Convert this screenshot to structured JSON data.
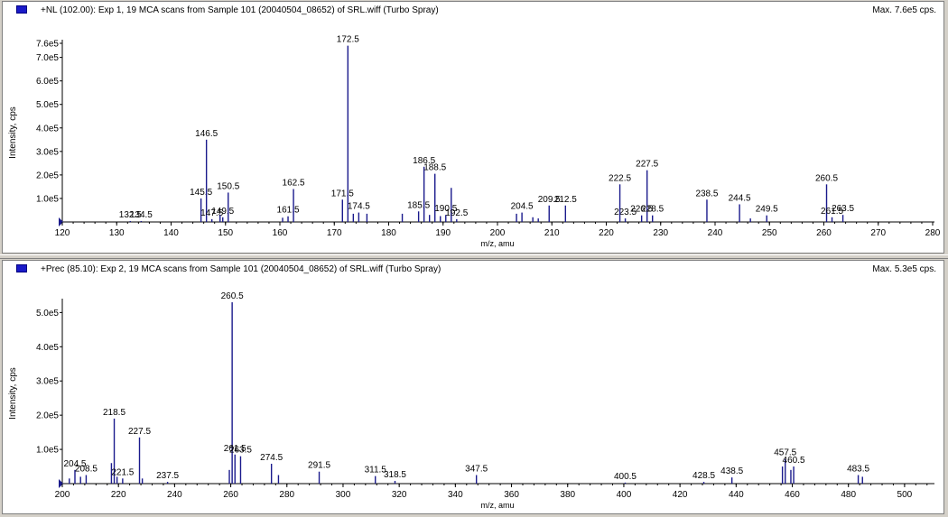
{
  "colors": {
    "peak": "#1a1a8c",
    "axis": "#000000",
    "marker": "#1a1ac8"
  },
  "panes": [
    {
      "title": "+NL (102.00): Exp 1, 19 MCA scans from Sample 101 (20040504_08652) of SRL.wiff (Turbo Spray)",
      "max_label": "Max. 7.6e5 cps."
    },
    {
      "title": "+Prec (85.10): Exp 2, 19 MCA scans from Sample 101 (20040504_08652) of SRL.wiff (Turbo Spray)",
      "max_label": "Max. 5.3e5 cps."
    }
  ],
  "chart_data": [
    {
      "type": "bar",
      "xlabel": "m/z, amu",
      "ylabel": "Intensity, cps",
      "xlim": [
        120,
        280
      ],
      "ylim": [
        0,
        760000
      ],
      "xticks": [
        120,
        130,
        140,
        150,
        160,
        170,
        180,
        190,
        200,
        210,
        220,
        230,
        240,
        250,
        260,
        270,
        280
      ],
      "yticks": [
        {
          "value": 100000,
          "label": "1.0e5"
        },
        {
          "value": 200000,
          "label": "2.0e5"
        },
        {
          "value": 300000,
          "label": "3.0e5"
        },
        {
          "value": 400000,
          "label": "4.0e5"
        },
        {
          "value": 500000,
          "label": "5.0e5"
        },
        {
          "value": 600000,
          "label": "6.0e5"
        },
        {
          "value": 700000,
          "label": "7.0e5"
        },
        {
          "value": 760000,
          "label": "7.6e5"
        }
      ],
      "peaks": [
        {
          "x": 132.5,
          "y": 4000,
          "label": "132.5"
        },
        {
          "x": 134.5,
          "y": 4000,
          "label": "134.5"
        },
        {
          "x": 145.5,
          "y": 100000,
          "label": "145.5"
        },
        {
          "x": 146.5,
          "y": 350000,
          "label": "146.5"
        },
        {
          "x": 147.5,
          "y": 12000,
          "label": "147.5"
        },
        {
          "x": 149.0,
          "y": 30000
        },
        {
          "x": 149.5,
          "y": 20000,
          "label": "149.5"
        },
        {
          "x": 150.5,
          "y": 125000,
          "label": "150.5"
        },
        {
          "x": 160.5,
          "y": 18000
        },
        {
          "x": 161.5,
          "y": 24000,
          "label": "161.5"
        },
        {
          "x": 162.5,
          "y": 140000,
          "label": "162.5"
        },
        {
          "x": 171.5,
          "y": 95000,
          "label": "171.5"
        },
        {
          "x": 172.5,
          "y": 750000,
          "label": "172.5"
        },
        {
          "x": 173.5,
          "y": 35000
        },
        {
          "x": 174.5,
          "y": 40000,
          "label": "174.5"
        },
        {
          "x": 176.0,
          "y": 35000
        },
        {
          "x": 182.5,
          "y": 35000
        },
        {
          "x": 185.5,
          "y": 45000,
          "label": "185.5"
        },
        {
          "x": 186.5,
          "y": 235000,
          "label": "186.5"
        },
        {
          "x": 187.5,
          "y": 30000
        },
        {
          "x": 188.5,
          "y": 205000,
          "label": "188.5"
        },
        {
          "x": 189.5,
          "y": 25000
        },
        {
          "x": 190.5,
          "y": 30000,
          "label": "190.5"
        },
        {
          "x": 191.5,
          "y": 145000
        },
        {
          "x": 192.5,
          "y": 12000,
          "label": "192.5"
        },
        {
          "x": 203.5,
          "y": 35000
        },
        {
          "x": 204.5,
          "y": 40000,
          "label": "204.5"
        },
        {
          "x": 206.5,
          "y": 20000
        },
        {
          "x": 207.5,
          "y": 15000
        },
        {
          "x": 209.5,
          "y": 70000,
          "label": "209.5"
        },
        {
          "x": 212.5,
          "y": 70000,
          "label": "212.5"
        },
        {
          "x": 223.5,
          "y": 15000,
          "label": "223.5"
        },
        {
          "x": 222.5,
          "y": 160000,
          "label": "222.5"
        },
        {
          "x": 226.5,
          "y": 28000,
          "label": "226.5"
        },
        {
          "x": 227.5,
          "y": 220000,
          "label": "227.5"
        },
        {
          "x": 228.5,
          "y": 28000,
          "label": "228.5"
        },
        {
          "x": 238.5,
          "y": 95000,
          "label": "238.5"
        },
        {
          "x": 244.5,
          "y": 75000,
          "label": "244.5"
        },
        {
          "x": 246.5,
          "y": 15000
        },
        {
          "x": 249.5,
          "y": 28000,
          "label": "249.5"
        },
        {
          "x": 260.5,
          "y": 160000,
          "label": "260.5"
        },
        {
          "x": 261.5,
          "y": 20000,
          "label": "261.5"
        },
        {
          "x": 263.5,
          "y": 30000,
          "label": "263.5"
        }
      ]
    },
    {
      "type": "bar",
      "xlabel": "m/z, amu",
      "ylabel": "Intensity, cps",
      "xlim": [
        200,
        510
      ],
      "ylim": [
        0,
        530000
      ],
      "xticks": [
        200,
        220,
        240,
        260,
        280,
        300,
        320,
        340,
        360,
        380,
        400,
        420,
        440,
        460,
        480,
        500
      ],
      "yticks": [
        {
          "value": 100000,
          "label": "1.0e5"
        },
        {
          "value": 200000,
          "label": "2.0e5"
        },
        {
          "value": 300000,
          "label": "3.0e5"
        },
        {
          "value": 400000,
          "label": "4.0e5"
        },
        {
          "value": 500000,
          "label": "5.0e5"
        }
      ],
      "peaks": [
        {
          "x": 202.5,
          "y": 15000
        },
        {
          "x": 204.5,
          "y": 40000,
          "label": "204.5"
        },
        {
          "x": 206.5,
          "y": 20000
        },
        {
          "x": 208.5,
          "y": 25000,
          "label": "208.5"
        },
        {
          "x": 217.5,
          "y": 60000
        },
        {
          "x": 218.5,
          "y": 190000,
          "label": "218.5"
        },
        {
          "x": 219.5,
          "y": 20000
        },
        {
          "x": 221.5,
          "y": 15000,
          "label": "221.5"
        },
        {
          "x": 227.5,
          "y": 135000,
          "label": "227.5"
        },
        {
          "x": 228.5,
          "y": 15000
        },
        {
          "x": 237.5,
          "y": 5000,
          "label": "237.5"
        },
        {
          "x": 259.5,
          "y": 40000
        },
        {
          "x": 260.5,
          "y": 530000,
          "label": "260.5"
        },
        {
          "x": 261.5,
          "y": 85000,
          "label": "261.5"
        },
        {
          "x": 263.5,
          "y": 80000,
          "label": "263.5"
        },
        {
          "x": 274.5,
          "y": 58000,
          "label": "274.5"
        },
        {
          "x": 277.0,
          "y": 25000
        },
        {
          "x": 291.5,
          "y": 35000,
          "label": "291.5"
        },
        {
          "x": 311.5,
          "y": 22000,
          "label": "311.5"
        },
        {
          "x": 318.5,
          "y": 8000,
          "label": "318.5"
        },
        {
          "x": 347.5,
          "y": 25000,
          "label": "347.5"
        },
        {
          "x": 400.5,
          "y": 3000,
          "label": "400.5"
        },
        {
          "x": 428.5,
          "y": 5000,
          "label": "428.5"
        },
        {
          "x": 438.5,
          "y": 18000,
          "label": "438.5"
        },
        {
          "x": 456.5,
          "y": 50000
        },
        {
          "x": 457.5,
          "y": 72000,
          "label": "457.5"
        },
        {
          "x": 459.5,
          "y": 40000
        },
        {
          "x": 460.5,
          "y": 50000,
          "label": "460.5"
        },
        {
          "x": 483.5,
          "y": 25000,
          "label": "483.5"
        },
        {
          "x": 485.0,
          "y": 20000
        }
      ]
    }
  ]
}
